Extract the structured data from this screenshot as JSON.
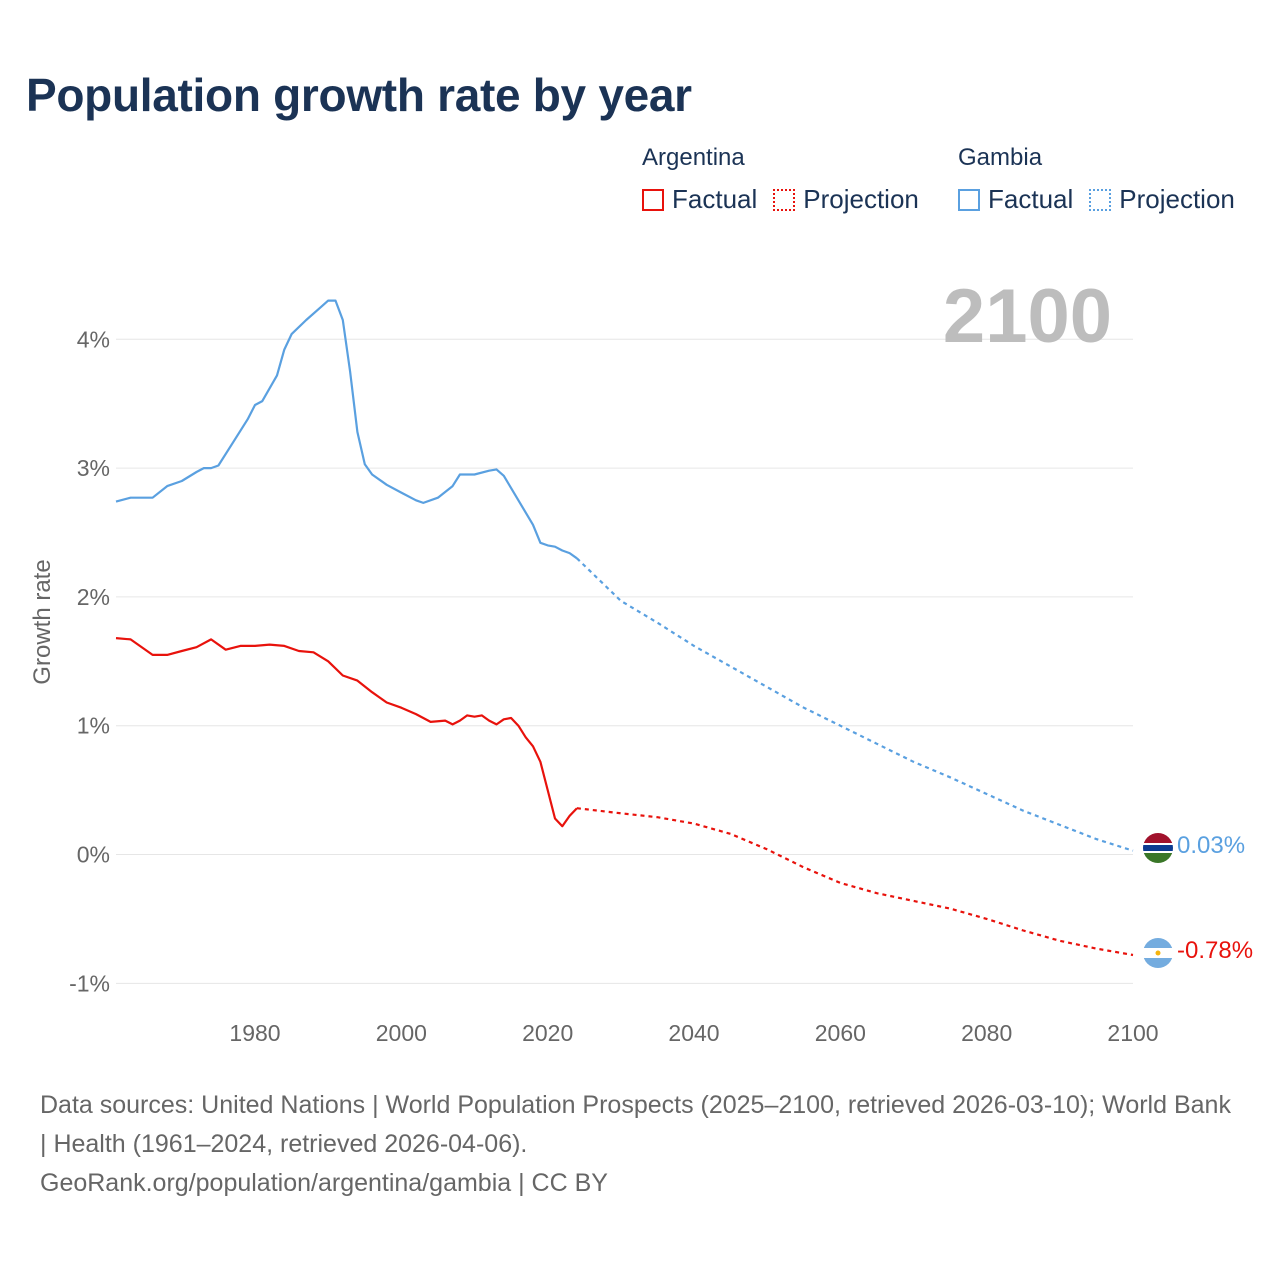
{
  "title": "Population growth rate by year",
  "legend": {
    "groups": [
      {
        "country": "Argentina",
        "color": "#e8120c",
        "entries": [
          {
            "label": "Factual",
            "style": "solid"
          },
          {
            "label": "Projection",
            "style": "dotted"
          }
        ]
      },
      {
        "country": "Gambia",
        "color": "#5aa0e0",
        "entries": [
          {
            "label": "Factual",
            "style": "solid"
          },
          {
            "label": "Projection",
            "style": "dotted"
          }
        ]
      }
    ]
  },
  "year_display": "2100",
  "sources_text": "Data sources: United Nations | World Population Prospects (2025–2100, retrieved 2026-03-10); World Bank | Health (1961–2024, retrieved 2026-04-06).",
  "credit_text": "GeoRank.org/population/argentina/gambia | CC BY",
  "chart_data": {
    "type": "line",
    "title": "Population growth rate by year",
    "xlabel": "",
    "ylabel": "Growth rate",
    "xlim": [
      1961,
      2100
    ],
    "ylim": [
      -1.3,
      4.6
    ],
    "x_ticks": [
      1980,
      2000,
      2020,
      2040,
      2060,
      2080,
      2100
    ],
    "x_tick_labels": [
      "1980",
      "2000",
      "2020",
      "2040",
      "2060",
      "2080",
      "2100"
    ],
    "y_ticks": [
      -1,
      0,
      1,
      2,
      3,
      4
    ],
    "y_tick_labels": [
      "-1%",
      "0%",
      "1%",
      "2%",
      "3%",
      "4%"
    ],
    "grid": true,
    "legend_position": "top-right",
    "series": [
      {
        "name": "Argentina",
        "color": "#e8120c",
        "end_label": "-0.78%",
        "factual": {
          "x": [
            1961,
            1963,
            1966,
            1968,
            1970,
            1972,
            1974,
            1976,
            1978,
            1980,
            1982,
            1984,
            1986,
            1988,
            1990,
            1992,
            1994,
            1996,
            1998,
            2000,
            2002,
            2004,
            2006,
            2007,
            2008,
            2009,
            2010,
            2011,
            2012,
            2013,
            2014,
            2015,
            2016,
            2017,
            2018,
            2019,
            2020,
            2021,
            2022,
            2023,
            2024
          ],
          "y": [
            1.68,
            1.67,
            1.55,
            1.55,
            1.58,
            1.61,
            1.67,
            1.59,
            1.62,
            1.62,
            1.63,
            1.62,
            1.58,
            1.57,
            1.5,
            1.39,
            1.35,
            1.26,
            1.18,
            1.14,
            1.09,
            1.03,
            1.04,
            1.01,
            1.04,
            1.08,
            1.07,
            1.08,
            1.04,
            1.01,
            1.05,
            1.06,
            1.0,
            0.91,
            0.84,
            0.72,
            0.5,
            0.28,
            0.22,
            0.3,
            0.36
          ]
        },
        "projection": {
          "x": [
            2024,
            2030,
            2035,
            2040,
            2045,
            2050,
            2055,
            2060,
            2065,
            2070,
            2075,
            2080,
            2085,
            2090,
            2095,
            2100
          ],
          "y": [
            0.36,
            0.32,
            0.29,
            0.24,
            0.16,
            0.04,
            -0.1,
            -0.22,
            -0.3,
            -0.36,
            -0.42,
            -0.5,
            -0.59,
            -0.67,
            -0.73,
            -0.78
          ]
        }
      },
      {
        "name": "Gambia",
        "color": "#5aa0e0",
        "end_label": "0.03%",
        "factual": {
          "x": [
            1961,
            1963,
            1966,
            1968,
            1970,
            1972,
            1973,
            1974,
            1975,
            1977,
            1979,
            1980,
            1981,
            1983,
            1984,
            1985,
            1987,
            1989,
            1990,
            1991,
            1992,
            1993,
            1994,
            1995,
            1996,
            1998,
            2000,
            2002,
            2003,
            2005,
            2007,
            2008,
            2010,
            2012,
            2013,
            2014,
            2016,
            2018,
            2019,
            2020,
            2021,
            2022,
            2023,
            2024
          ],
          "y": [
            2.74,
            2.77,
            2.77,
            2.86,
            2.9,
            2.97,
            3.0,
            3.0,
            3.02,
            3.2,
            3.38,
            3.49,
            3.52,
            3.72,
            3.92,
            4.04,
            4.15,
            4.25,
            4.3,
            4.3,
            4.15,
            3.75,
            3.28,
            3.03,
            2.95,
            2.87,
            2.81,
            2.75,
            2.73,
            2.77,
            2.86,
            2.95,
            2.95,
            2.98,
            2.99,
            2.94,
            2.75,
            2.56,
            2.42,
            2.4,
            2.39,
            2.36,
            2.34,
            2.3
          ]
        },
        "projection": {
          "x": [
            2024,
            2030,
            2035,
            2040,
            2045,
            2050,
            2055,
            2060,
            2065,
            2070,
            2075,
            2080,
            2085,
            2090,
            2095,
            2100
          ],
          "y": [
            2.3,
            1.97,
            1.8,
            1.62,
            1.46,
            1.3,
            1.14,
            1.0,
            0.86,
            0.72,
            0.6,
            0.47,
            0.34,
            0.23,
            0.12,
            0.03
          ]
        }
      }
    ]
  }
}
